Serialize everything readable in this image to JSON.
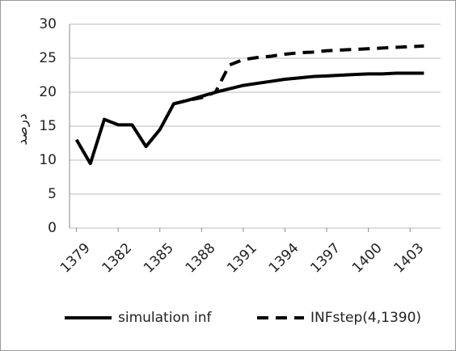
{
  "chart_data": {
    "type": "line",
    "y_label": "درصد",
    "x": [
      1379,
      1380,
      1381,
      1382,
      1383,
      1384,
      1385,
      1386,
      1387,
      1388,
      1389,
      1390,
      1391,
      1392,
      1393,
      1394,
      1395,
      1396,
      1397,
      1398,
      1399,
      1400,
      1401,
      1402,
      1403,
      1404
    ],
    "series": [
      {
        "name": "simulation inf",
        "color": "#000000",
        "dash": false,
        "values": [
          13,
          9.5,
          16,
          15.2,
          15.2,
          12,
          14.5,
          18.3,
          18.8,
          19.4,
          20,
          20.5,
          21,
          21.3,
          21.6,
          21.9,
          22.1,
          22.3,
          22.4,
          22.5,
          22.6,
          22.7,
          22.7,
          22.8,
          22.8,
          22.8
        ]
      },
      {
        "name": "INFstep(4,1390)",
        "color": "#000000",
        "dash": true,
        "values": [
          null,
          null,
          null,
          null,
          null,
          null,
          null,
          18.3,
          18.8,
          19.2,
          20,
          24,
          24.8,
          25.1,
          25.3,
          25.6,
          25.8,
          25.9,
          26.1,
          26.2,
          26.3,
          26.4,
          26.5,
          26.6,
          26.7,
          26.8
        ]
      }
    ],
    "xlim": [
      1378.5,
      1405.2
    ],
    "xticks": [
      1379,
      1382,
      1385,
      1388,
      1391,
      1394,
      1397,
      1400,
      1403
    ],
    "ylim": [
      0,
      30
    ],
    "yticks": [
      0,
      5,
      10,
      15,
      20,
      25,
      30
    ],
    "grid": true,
    "legend": "bottom"
  }
}
